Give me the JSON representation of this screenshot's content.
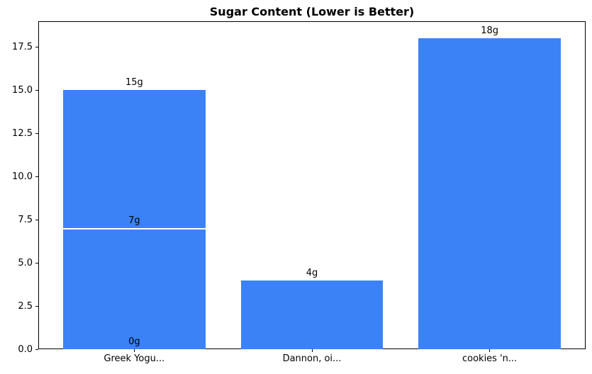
{
  "figure": {
    "background": "#ffffff"
  },
  "chart_data": {
    "type": "bar",
    "title": "Sugar Content (Lower is Better)",
    "categories": [
      "Greek Yogu...",
      "Dannon, oi...",
      "cookies 'n..."
    ],
    "bars": [
      {
        "category_index": 0,
        "value": 15,
        "label": "15g"
      },
      {
        "category_index": 0,
        "value": 7,
        "label": "7g",
        "top_edge_white": true
      },
      {
        "category_index": 0,
        "value": 0,
        "label": "0g"
      },
      {
        "category_index": 1,
        "value": 4,
        "label": "4g"
      },
      {
        "category_index": 2,
        "value": 18,
        "label": "18g"
      }
    ],
    "xlabel": "",
    "ylabel": "",
    "ylim": [
      0,
      19
    ],
    "xlim": [
      -0.54,
      2.54
    ],
    "yticks": [
      {
        "value": 0,
        "label": "0.0"
      },
      {
        "value": 2.5,
        "label": "2.5"
      },
      {
        "value": 5,
        "label": "5.0"
      },
      {
        "value": 7.5,
        "label": "7.5"
      },
      {
        "value": 10,
        "label": "10.0"
      },
      {
        "value": 12.5,
        "label": "12.5"
      },
      {
        "value": 15,
        "label": "15.0"
      },
      {
        "value": 17.5,
        "label": "17.5"
      }
    ],
    "bar_width": 0.8,
    "bar_color": "#3b82f6",
    "bar_edge_color": "#ffffff",
    "grid": false,
    "legend_position": "none"
  }
}
